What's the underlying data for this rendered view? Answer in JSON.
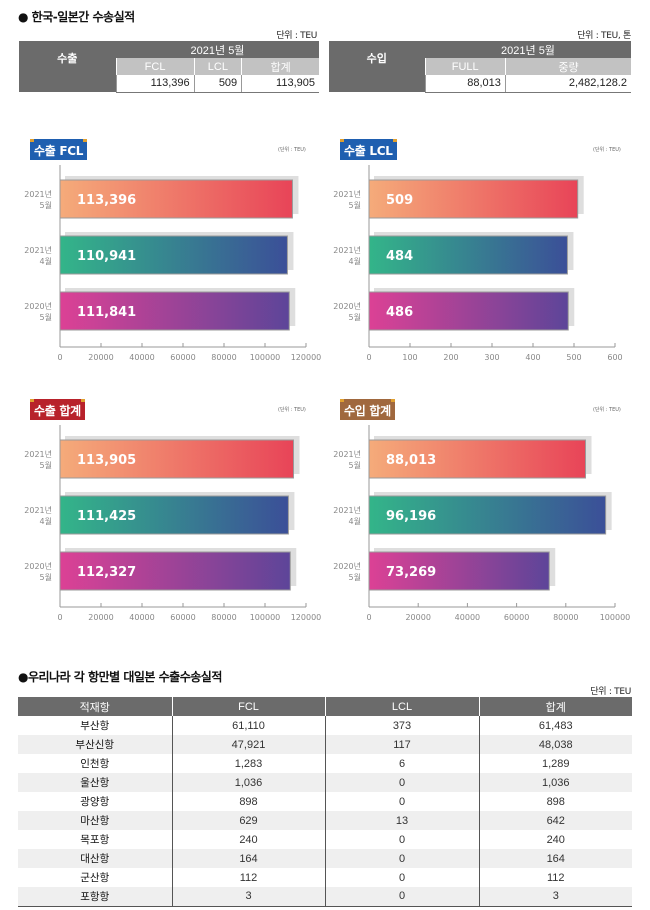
{
  "section1": {
    "title": "● 한국-일본간 수송실적",
    "export_table": {
      "unit": "단위 : TEU",
      "row_label": "수출",
      "period": "2021년 5월",
      "columns": [
        "FCL",
        "LCL",
        "합계"
      ],
      "values": [
        "113,396",
        "509",
        "113,905"
      ]
    },
    "import_table": {
      "unit": "단위 : TEU, 톤",
      "row_label": "수입",
      "period": "2021년 5월",
      "columns": [
        "FULL",
        "중량"
      ],
      "values": [
        "88,013",
        "2,482,128.2"
      ]
    }
  },
  "chart_colors": {
    "row1": [
      "#f5ab7a",
      "#e84458"
    ],
    "row2": [
      "#33b589",
      "#3b4f98"
    ],
    "row3": [
      "#dc4195",
      "#5d4599"
    ],
    "shadow": "#dedede",
    "axis": "#999999"
  },
  "chart_data": [
    {
      "type": "bar",
      "orientation": "horizontal",
      "title": "수출 FCL",
      "title_color": "#1f5fb0",
      "unit": "(단위 : TEU)",
      "categories": [
        [
          "2021년",
          "5월"
        ],
        [
          "2021년",
          "4월"
        ],
        [
          "2020년",
          "5월"
        ]
      ],
      "values": [
        113396,
        110941,
        111841
      ],
      "labels": [
        "113,396",
        "110,941",
        "111,841"
      ],
      "xlim": [
        0,
        120000
      ],
      "xticks": [
        "0",
        "20000",
        "40000",
        "60000",
        "80000",
        "100000",
        "120000"
      ],
      "grid": false
    },
    {
      "type": "bar",
      "orientation": "horizontal",
      "title": "수출 LCL",
      "title_color": "#1f5fb0",
      "unit": "(단위 : TEU)",
      "categories": [
        [
          "2021년",
          "5월"
        ],
        [
          "2021년",
          "4월"
        ],
        [
          "2020년",
          "5월"
        ]
      ],
      "values": [
        509,
        484,
        486
      ],
      "labels": [
        "509",
        "484",
        "486"
      ],
      "xlim": [
        0,
        600
      ],
      "xticks": [
        "0",
        "100",
        "200",
        "300",
        "400",
        "500",
        "600"
      ],
      "grid": false
    },
    {
      "type": "bar",
      "orientation": "horizontal",
      "title": "수출 합계",
      "title_color": "#b8222b",
      "unit": "(단위 : TEU)",
      "categories": [
        [
          "2021년",
          "5월"
        ],
        [
          "2021년",
          "4월"
        ],
        [
          "2020년",
          "5월"
        ]
      ],
      "values": [
        113905,
        111425,
        112327
      ],
      "labels": [
        "113,905",
        "111,425",
        "112,327"
      ],
      "xlim": [
        0,
        120000
      ],
      "xticks": [
        "0",
        "20000",
        "40000",
        "60000",
        "80000",
        "100000",
        "120000"
      ],
      "grid": false
    },
    {
      "type": "bar",
      "orientation": "horizontal",
      "title": "수입 합계",
      "title_color": "#a0683e",
      "unit": "(단위 : TEU)",
      "categories": [
        [
          "2021년",
          "5월"
        ],
        [
          "2021년",
          "4월"
        ],
        [
          "2020년",
          "5월"
        ]
      ],
      "values": [
        88013,
        96196,
        73269
      ],
      "labels": [
        "88,013",
        "96,196",
        "73,269"
      ],
      "xlim": [
        0,
        100000
      ],
      "xticks": [
        "0",
        "20000",
        "40000",
        "60000",
        "80000",
        "100000"
      ],
      "grid": false
    }
  ],
  "section2": {
    "title": "●우리나라 각 항만별 대일본 수출수송실적",
    "unit": "단위 : TEU",
    "headers": [
      "적재항",
      "FCL",
      "LCL",
      "합계"
    ],
    "rows": [
      [
        "부산항",
        "61,110",
        "373",
        "61,483"
      ],
      [
        "부산신항",
        "47,921",
        "117",
        "48,038"
      ],
      [
        "인천항",
        "1,283",
        "6",
        "1,289"
      ],
      [
        "울산항",
        "1,036",
        "0",
        "1,036"
      ],
      [
        "광양항",
        "898",
        "0",
        "898"
      ],
      [
        "마산항",
        "629",
        "13",
        "642"
      ],
      [
        "목포항",
        "240",
        "0",
        "240"
      ],
      [
        "대산항",
        "164",
        "0",
        "164"
      ],
      [
        "군산항",
        "112",
        "0",
        "112"
      ],
      [
        "포항항",
        "3",
        "0",
        "3"
      ]
    ]
  }
}
